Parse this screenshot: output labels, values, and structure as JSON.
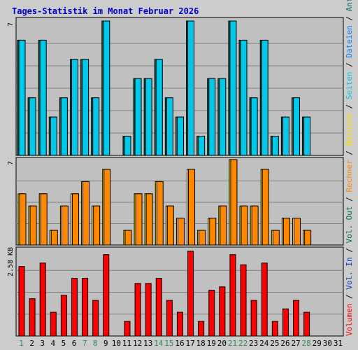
{
  "chart_data": {
    "type": "bar",
    "title": "Tages-Statistik im Monat Februar 2026",
    "days": [
      "1",
      "2",
      "3",
      "4",
      "5",
      "6",
      "7",
      "8",
      "9",
      "10",
      "11",
      "12",
      "13",
      "14",
      "15",
      "16",
      "17",
      "18",
      "19",
      "20",
      "21",
      "22",
      "23",
      "24",
      "25",
      "26",
      "27",
      "28",
      "29",
      "30",
      "31"
    ],
    "weekend_days": [
      1,
      7,
      8,
      14,
      15,
      21,
      22,
      28
    ],
    "colors": {
      "title": "#0000cc",
      "background": "#cccccc",
      "plot_bg": "#c0c0c0",
      "grid": "#808080",
      "weekday_label": "#000000",
      "weekend_label": "#2e8b57",
      "anfragen": "#006e5a",
      "dateien": "#00c8e8",
      "seiten": "#00c8e8",
      "besuche": "#ffe000",
      "rechner": "#ff8800",
      "vol_in": "#e00000",
      "vol_out": "#e00000",
      "volumen": "#ff0000"
    },
    "panels": [
      {
        "max_label": "7",
        "unit": "",
        "series": [
          {
            "name": "Anfragen",
            "values": [
              6,
              3,
              6,
              2,
              3,
              5,
              5,
              3,
              7,
              null,
              1,
              4,
              4,
              5,
              3,
              2,
              7,
              1,
              4,
              4,
              7,
              6,
              3,
              6,
              1,
              2,
              3,
              2,
              null,
              null,
              null
            ]
          },
          {
            "name": "Dateien",
            "values": [
              6,
              3,
              6,
              2,
              3,
              5,
              5,
              3,
              7,
              null,
              1,
              4,
              4,
              5,
              3,
              2,
              7,
              1,
              4,
              4,
              7,
              6,
              3,
              6,
              1,
              2,
              3,
              2,
              null,
              null,
              null
            ]
          }
        ],
        "legend": [
          "Anfragen",
          "Dateien",
          "Seiten"
        ]
      },
      {
        "max_label": "7",
        "unit": "",
        "series": [
          {
            "name": "Besuche",
            "values": [
              4.2,
              3.2,
              4.2,
              1.2,
              3.2,
              4.2,
              5.2,
              3.2,
              6.2,
              null,
              1.2,
              4.2,
              4.2,
              5.2,
              3.2,
              2.2,
              6.2,
              1.2,
              2.2,
              3.2,
              7,
              3.2,
              3.2,
              6.2,
              1.2,
              2.2,
              2.2,
              1.2,
              null,
              null,
              null
            ]
          },
          {
            "name": "Rechner",
            "values": [
              4.2,
              3.2,
              4.2,
              1.2,
              3.2,
              4.2,
              5.2,
              3.2,
              6.2,
              null,
              1.2,
              4.2,
              4.2,
              5.2,
              3.2,
              2.2,
              6.2,
              1.2,
              2.2,
              3.2,
              7,
              3.2,
              3.2,
              6.2,
              1.2,
              2.2,
              2.2,
              1.2,
              null,
              null,
              null
            ]
          }
        ],
        "legend": [
          "Besuche",
          "Rechner",
          "Vol. Out"
        ]
      },
      {
        "max_label": "2.58",
        "unit": "KB",
        "series": [
          {
            "name": "Volumen",
            "values": [
              2.05,
              1.1,
              2.15,
              0.7,
              1.2,
              1.7,
              1.7,
              1.05,
              2.4,
              null,
              0.43,
              1.55,
              1.55,
              1.7,
              1.05,
              0.7,
              2.5,
              0.43,
              1.35,
              1.45,
              2.4,
              2.1,
              1.05,
              2.15,
              0.43,
              0.8,
              1.05,
              0.7,
              null,
              null,
              null
            ]
          }
        ],
        "legend": [
          "Vol. In",
          "Volumen"
        ]
      }
    ]
  }
}
